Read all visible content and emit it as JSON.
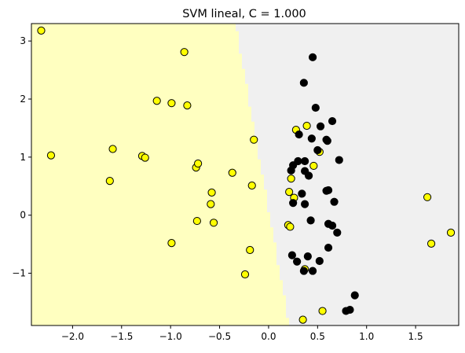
{
  "chart_data": {
    "type": "scatter",
    "title": "SVM lineal, C = 1.000",
    "xlabel": "",
    "ylabel": "",
    "xlim": [
      -2.42,
      1.94
    ],
    "ylim": [
      -1.9,
      3.3
    ],
    "grid": false,
    "legend": "none",
    "x_ticks": [
      -2.0,
      -1.5,
      -1.0,
      -0.5,
      0.0,
      0.5,
      1.0,
      1.5
    ],
    "x_tick_labels": [
      "−2.0",
      "−1.5",
      "−1.0",
      "−0.5",
      "0.0",
      "0.5",
      "1.0",
      "1.5"
    ],
    "y_ticks": [
      -1,
      0,
      1,
      2,
      3
    ],
    "y_tick_labels": [
      "−1",
      "0",
      "1",
      "2",
      "3"
    ],
    "decision_boundary": {
      "top": {
        "x": -0.33,
        "y": 3.3
      },
      "bottom": {
        "x": 0.22,
        "y": -1.9
      }
    },
    "region_colors": {
      "yellow_side": "#ffffc0",
      "gray_side": "#f0f0f0"
    },
    "series": [
      {
        "color": "#ffff00",
        "points": [
          [
            -2.32,
            3.18
          ],
          [
            -0.86,
            2.81
          ],
          [
            -1.14,
            1.97
          ],
          [
            -0.99,
            1.93
          ],
          [
            -0.83,
            1.89
          ],
          [
            -2.22,
            1.03
          ],
          [
            -1.59,
            1.14
          ],
          [
            -1.29,
            1.02
          ],
          [
            -1.26,
            0.99
          ],
          [
            -0.15,
            1.3
          ],
          [
            -0.74,
            0.82
          ],
          [
            -0.72,
            0.89
          ],
          [
            -0.37,
            0.73
          ],
          [
            -1.62,
            0.59
          ],
          [
            -0.17,
            0.51
          ],
          [
            -0.58,
            0.39
          ],
          [
            -0.59,
            0.19
          ],
          [
            -0.73,
            -0.1
          ],
          [
            -0.56,
            -0.13
          ],
          [
            -0.99,
            -0.48
          ],
          [
            -0.19,
            -0.6
          ],
          [
            -0.24,
            -1.02
          ],
          [
            0.28,
            1.47
          ],
          [
            0.39,
            1.54
          ],
          [
            0.52,
            1.09
          ],
          [
            0.46,
            0.85
          ],
          [
            0.23,
            0.63
          ],
          [
            0.21,
            0.4
          ],
          [
            0.26,
            0.3
          ],
          [
            0.2,
            -0.17
          ],
          [
            0.22,
            -0.2
          ],
          [
            0.37,
            -0.93
          ],
          [
            0.35,
            -1.8
          ],
          [
            0.55,
            -1.65
          ],
          [
            1.62,
            0.31
          ],
          [
            1.66,
            -0.49
          ],
          [
            1.86,
            -0.3
          ]
        ]
      },
      {
        "color": "#000000",
        "points": [
          [
            0.45,
            2.72
          ],
          [
            0.36,
            2.28
          ],
          [
            0.48,
            1.85
          ],
          [
            0.53,
            1.53
          ],
          [
            0.65,
            1.62
          ],
          [
            0.31,
            1.39
          ],
          [
            0.44,
            1.32
          ],
          [
            0.59,
            1.3
          ],
          [
            0.6,
            1.28
          ],
          [
            0.5,
            1.12
          ],
          [
            0.72,
            0.95
          ],
          [
            0.3,
            0.93
          ],
          [
            0.37,
            0.93
          ],
          [
            0.25,
            0.86
          ],
          [
            0.23,
            0.77
          ],
          [
            0.37,
            0.76
          ],
          [
            0.41,
            0.68
          ],
          [
            0.34,
            0.37
          ],
          [
            0.59,
            0.42
          ],
          [
            0.61,
            0.43
          ],
          [
            0.25,
            0.21
          ],
          [
            0.37,
            0.19
          ],
          [
            0.67,
            0.23
          ],
          [
            0.43,
            -0.09
          ],
          [
            0.61,
            -0.15
          ],
          [
            0.65,
            -0.18
          ],
          [
            0.7,
            -0.3
          ],
          [
            0.61,
            -0.56
          ],
          [
            0.24,
            -0.69
          ],
          [
            0.4,
            -0.71
          ],
          [
            0.29,
            -0.8
          ],
          [
            0.52,
            -0.79
          ],
          [
            0.36,
            -0.96
          ],
          [
            0.45,
            -0.96
          ],
          [
            0.88,
            -1.38
          ],
          [
            0.79,
            -1.65
          ],
          [
            0.83,
            -1.63
          ]
        ]
      }
    ]
  }
}
